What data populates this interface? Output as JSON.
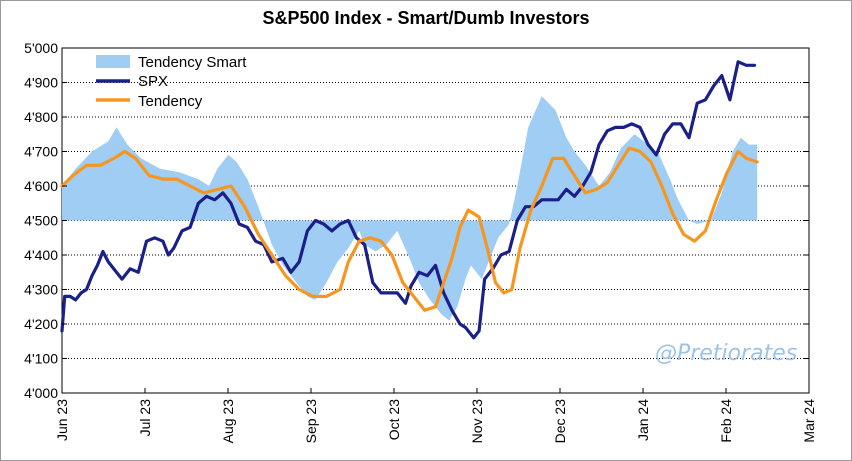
{
  "chart_data": {
    "type": "line",
    "title": "S&P500 Index - Smart/Dumb Investors",
    "ylim": [
      4000,
      5000
    ],
    "yticks": [
      "4'000",
      "4'100",
      "4'200",
      "4'300",
      "4'400",
      "4'500",
      "4'600",
      "4'700",
      "4'800",
      "4'900",
      "5'000"
    ],
    "xlim": [
      "2023-06-01",
      "2024-03-01"
    ],
    "xticks": [
      "Jun 23",
      "Jul 23",
      "Aug 23",
      "Sep 23",
      "Oct 23",
      "Nov 23",
      "Dec 23",
      "Jan 24",
      "Feb 24",
      "Mar 24"
    ],
    "baseline": 4500,
    "legend": [
      "Tendency Smart",
      "SPX",
      "Tendency"
    ],
    "legend_position": "top-left",
    "watermark": "@Pretiorates",
    "colors": {
      "smart": "#9fcdf4",
      "spx": "#1b1f8a",
      "tendency": "#f7961e",
      "grid": "#000000"
    },
    "series": [
      {
        "name": "Tendency Smart",
        "kind": "area",
        "points": [
          [
            "2023-06-01",
            4600
          ],
          [
            "2023-06-06",
            4650
          ],
          [
            "2023-06-12",
            4700
          ],
          [
            "2023-06-18",
            4730
          ],
          [
            "2023-06-21",
            4770
          ],
          [
            "2023-06-25",
            4720
          ],
          [
            "2023-06-30",
            4680
          ],
          [
            "2023-07-07",
            4650
          ],
          [
            "2023-07-14",
            4640
          ],
          [
            "2023-07-21",
            4620
          ],
          [
            "2023-07-25",
            4600
          ],
          [
            "2023-07-28",
            4650
          ],
          [
            "2023-08-01",
            4690
          ],
          [
            "2023-08-04",
            4670
          ],
          [
            "2023-08-08",
            4620
          ],
          [
            "2023-08-12",
            4540
          ],
          [
            "2023-08-17",
            4430
          ],
          [
            "2023-08-21",
            4370
          ],
          [
            "2023-08-25",
            4330
          ],
          [
            "2023-08-30",
            4280
          ],
          [
            "2023-09-02",
            4270
          ],
          [
            "2023-09-06",
            4320
          ],
          [
            "2023-09-10",
            4380
          ],
          [
            "2023-09-14",
            4420
          ],
          [
            "2023-09-18",
            4470
          ],
          [
            "2023-09-20",
            4430
          ],
          [
            "2023-09-24",
            4410
          ],
          [
            "2023-09-28",
            4430
          ],
          [
            "2023-10-02",
            4470
          ],
          [
            "2023-10-06",
            4400
          ],
          [
            "2023-10-10",
            4320
          ],
          [
            "2023-10-14",
            4270
          ],
          [
            "2023-10-18",
            4230
          ],
          [
            "2023-10-21",
            4210
          ],
          [
            "2023-10-24",
            4250
          ],
          [
            "2023-10-27",
            4330
          ],
          [
            "2023-10-29",
            4370
          ],
          [
            "2023-11-02",
            4330
          ],
          [
            "2023-11-05",
            4390
          ],
          [
            "2023-11-08",
            4450
          ],
          [
            "2023-11-12",
            4490
          ],
          [
            "2023-11-15",
            4600
          ],
          [
            "2023-11-19",
            4770
          ],
          [
            "2023-11-24",
            4860
          ],
          [
            "2023-11-29",
            4820
          ],
          [
            "2023-12-03",
            4740
          ],
          [
            "2023-12-06",
            4700
          ],
          [
            "2023-12-10",
            4660
          ],
          [
            "2023-12-15",
            4600
          ],
          [
            "2023-12-19",
            4640
          ],
          [
            "2023-12-23",
            4710
          ],
          [
            "2023-12-28",
            4750
          ],
          [
            "2024-01-02",
            4720
          ],
          [
            "2024-01-06",
            4690
          ],
          [
            "2024-01-10",
            4620
          ],
          [
            "2024-01-13",
            4560
          ],
          [
            "2024-01-17",
            4500
          ],
          [
            "2024-01-20",
            4490
          ],
          [
            "2024-01-25",
            4500
          ],
          [
            "2024-01-29",
            4580
          ],
          [
            "2024-02-02",
            4700
          ],
          [
            "2024-02-05",
            4740
          ],
          [
            "2024-02-08",
            4720
          ],
          [
            "2024-02-11",
            4720
          ]
        ]
      },
      {
        "name": "SPX",
        "kind": "line",
        "points": [
          [
            "2023-06-01",
            4180
          ],
          [
            "2023-06-02",
            4280
          ],
          [
            "2023-06-04",
            4280
          ],
          [
            "2023-06-06",
            4270
          ],
          [
            "2023-06-08",
            4290
          ],
          [
            "2023-06-10",
            4300
          ],
          [
            "2023-06-12",
            4340
          ],
          [
            "2023-06-14",
            4370
          ],
          [
            "2023-06-16",
            4410
          ],
          [
            "2023-06-18",
            4380
          ],
          [
            "2023-06-21",
            4350
          ],
          [
            "2023-06-23",
            4330
          ],
          [
            "2023-06-26",
            4360
          ],
          [
            "2023-06-29",
            4350
          ],
          [
            "2023-07-02",
            4440
          ],
          [
            "2023-07-05",
            4450
          ],
          [
            "2023-07-08",
            4440
          ],
          [
            "2023-07-10",
            4400
          ],
          [
            "2023-07-12",
            4420
          ],
          [
            "2023-07-15",
            4470
          ],
          [
            "2023-07-18",
            4480
          ],
          [
            "2023-07-21",
            4550
          ],
          [
            "2023-07-24",
            4570
          ],
          [
            "2023-07-27",
            4560
          ],
          [
            "2023-07-30",
            4580
          ],
          [
            "2023-08-02",
            4550
          ],
          [
            "2023-08-05",
            4490
          ],
          [
            "2023-08-08",
            4480
          ],
          [
            "2023-08-11",
            4440
          ],
          [
            "2023-08-14",
            4430
          ],
          [
            "2023-08-17",
            4380
          ],
          [
            "2023-08-21",
            4390
          ],
          [
            "2023-08-24",
            4350
          ],
          [
            "2023-08-27",
            4380
          ],
          [
            "2023-08-30",
            4470
          ],
          [
            "2023-09-02",
            4500
          ],
          [
            "2023-09-05",
            4490
          ],
          [
            "2023-09-08",
            4470
          ],
          [
            "2023-09-11",
            4490
          ],
          [
            "2023-09-14",
            4500
          ],
          [
            "2023-09-17",
            4450
          ],
          [
            "2023-09-20",
            4430
          ],
          [
            "2023-09-23",
            4320
          ],
          [
            "2023-09-26",
            4290
          ],
          [
            "2023-09-29",
            4290
          ],
          [
            "2023-10-02",
            4290
          ],
          [
            "2023-10-05",
            4260
          ],
          [
            "2023-10-07",
            4310
          ],
          [
            "2023-10-10",
            4350
          ],
          [
            "2023-10-13",
            4340
          ],
          [
            "2023-10-16",
            4370
          ],
          [
            "2023-10-19",
            4290
          ],
          [
            "2023-10-22",
            4240
          ],
          [
            "2023-10-25",
            4200
          ],
          [
            "2023-10-27",
            4190
          ],
          [
            "2023-10-30",
            4160
          ],
          [
            "2023-11-01",
            4180
          ],
          [
            "2023-11-03",
            4330
          ],
          [
            "2023-11-06",
            4360
          ],
          [
            "2023-11-09",
            4400
          ],
          [
            "2023-11-12",
            4410
          ],
          [
            "2023-11-15",
            4500
          ],
          [
            "2023-11-18",
            4540
          ],
          [
            "2023-11-21",
            4540
          ],
          [
            "2023-11-24",
            4560
          ],
          [
            "2023-11-27",
            4560
          ],
          [
            "2023-11-30",
            4560
          ],
          [
            "2023-12-03",
            4590
          ],
          [
            "2023-12-06",
            4570
          ],
          [
            "2023-12-09",
            4600
          ],
          [
            "2023-12-12",
            4640
          ],
          [
            "2023-12-15",
            4720
          ],
          [
            "2023-12-18",
            4760
          ],
          [
            "2023-12-21",
            4770
          ],
          [
            "2023-12-24",
            4770
          ],
          [
            "2023-12-27",
            4780
          ],
          [
            "2023-12-30",
            4770
          ],
          [
            "2024-01-02",
            4720
          ],
          [
            "2024-01-05",
            4690
          ],
          [
            "2024-01-08",
            4750
          ],
          [
            "2024-01-11",
            4780
          ],
          [
            "2024-01-14",
            4780
          ],
          [
            "2024-01-17",
            4740
          ],
          [
            "2024-01-20",
            4840
          ],
          [
            "2024-01-23",
            4850
          ],
          [
            "2024-01-26",
            4890
          ],
          [
            "2024-01-29",
            4920
          ],
          [
            "2024-02-01",
            4850
          ],
          [
            "2024-02-04",
            4960
          ],
          [
            "2024-02-07",
            4950
          ],
          [
            "2024-02-10",
            4950
          ]
        ]
      },
      {
        "name": "Tendency",
        "kind": "line",
        "points": [
          [
            "2023-06-01",
            4600
          ],
          [
            "2023-06-05",
            4630
          ],
          [
            "2023-06-10",
            4660
          ],
          [
            "2023-06-15",
            4660
          ],
          [
            "2023-06-20",
            4680
          ],
          [
            "2023-06-24",
            4700
          ],
          [
            "2023-06-28",
            4680
          ],
          [
            "2023-07-03",
            4630
          ],
          [
            "2023-07-08",
            4620
          ],
          [
            "2023-07-13",
            4620
          ],
          [
            "2023-07-18",
            4600
          ],
          [
            "2023-07-23",
            4580
          ],
          [
            "2023-07-28",
            4590
          ],
          [
            "2023-08-02",
            4600
          ],
          [
            "2023-08-07",
            4540
          ],
          [
            "2023-08-12",
            4460
          ],
          [
            "2023-08-17",
            4400
          ],
          [
            "2023-08-22",
            4340
          ],
          [
            "2023-08-27",
            4300
          ],
          [
            "2023-09-01",
            4280
          ],
          [
            "2023-09-06",
            4280
          ],
          [
            "2023-09-11",
            4300
          ],
          [
            "2023-09-14",
            4380
          ],
          [
            "2023-09-18",
            4440
          ],
          [
            "2023-09-22",
            4450
          ],
          [
            "2023-09-26",
            4440
          ],
          [
            "2023-09-30",
            4400
          ],
          [
            "2023-10-04",
            4320
          ],
          [
            "2023-10-08",
            4280
          ],
          [
            "2023-10-12",
            4240
          ],
          [
            "2023-10-16",
            4250
          ],
          [
            "2023-10-19",
            4320
          ],
          [
            "2023-10-22",
            4390
          ],
          [
            "2023-10-25",
            4480
          ],
          [
            "2023-10-28",
            4530
          ],
          [
            "2023-11-01",
            4510
          ],
          [
            "2023-11-04",
            4420
          ],
          [
            "2023-11-07",
            4320
          ],
          [
            "2023-11-10",
            4290
          ],
          [
            "2023-11-13",
            4300
          ],
          [
            "2023-11-16",
            4420
          ],
          [
            "2023-11-20",
            4530
          ],
          [
            "2023-11-24",
            4600
          ],
          [
            "2023-11-28",
            4680
          ],
          [
            "2023-12-02",
            4680
          ],
          [
            "2023-12-06",
            4630
          ],
          [
            "2023-12-10",
            4580
          ],
          [
            "2023-12-14",
            4590
          ],
          [
            "2023-12-18",
            4610
          ],
          [
            "2023-12-22",
            4660
          ],
          [
            "2023-12-26",
            4710
          ],
          [
            "2023-12-30",
            4700
          ],
          [
            "2024-01-03",
            4670
          ],
          [
            "2024-01-07",
            4600
          ],
          [
            "2024-01-11",
            4520
          ],
          [
            "2024-01-15",
            4460
          ],
          [
            "2024-01-19",
            4440
          ],
          [
            "2024-01-23",
            4470
          ],
          [
            "2024-01-27",
            4560
          ],
          [
            "2024-01-31",
            4640
          ],
          [
            "2024-02-04",
            4700
          ],
          [
            "2024-02-07",
            4680
          ],
          [
            "2024-02-11",
            4670
          ]
        ]
      }
    ]
  }
}
